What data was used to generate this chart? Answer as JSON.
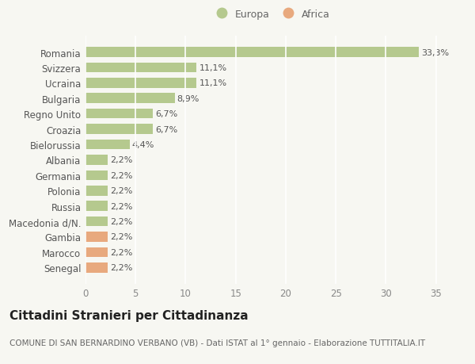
{
  "categories": [
    "Romania",
    "Svizzera",
    "Ucraina",
    "Bulgaria",
    "Regno Unito",
    "Croazia",
    "Bielorussia",
    "Albania",
    "Germania",
    "Polonia",
    "Russia",
    "Macedonia d/N.",
    "Gambia",
    "Marocco",
    "Senegal"
  ],
  "values": [
    33.3,
    11.1,
    11.1,
    8.9,
    6.7,
    6.7,
    4.4,
    2.2,
    2.2,
    2.2,
    2.2,
    2.2,
    2.2,
    2.2,
    2.2
  ],
  "labels": [
    "33,3%",
    "11,1%",
    "11,1%",
    "8,9%",
    "6,7%",
    "6,7%",
    "4,4%",
    "2,2%",
    "2,2%",
    "2,2%",
    "2,2%",
    "2,2%",
    "2,2%",
    "2,2%",
    "2,2%"
  ],
  "continent": [
    "Europa",
    "Europa",
    "Europa",
    "Europa",
    "Europa",
    "Europa",
    "Europa",
    "Europa",
    "Europa",
    "Europa",
    "Europa",
    "Europa",
    "Africa",
    "Africa",
    "Africa"
  ],
  "color_europa": "#b5c98e",
  "color_africa": "#e8a97e",
  "background_color": "#f7f7f2",
  "grid_color": "#ffffff",
  "xlim": [
    0,
    37
  ],
  "xticks": [
    0,
    5,
    10,
    15,
    20,
    25,
    30,
    35
  ],
  "title": "Cittadini Stranieri per Cittadinanza",
  "subtitle": "COMUNE DI SAN BERNARDINO VERBANO (VB) - Dati ISTAT al 1° gennaio - Elaborazione TUTTITALIA.IT",
  "legend_europa": "Europa",
  "legend_africa": "Africa",
  "bar_height": 0.65,
  "label_fontsize": 8,
  "ytick_fontsize": 8.5,
  "xtick_fontsize": 8.5,
  "title_fontsize": 11,
  "subtitle_fontsize": 7.5
}
